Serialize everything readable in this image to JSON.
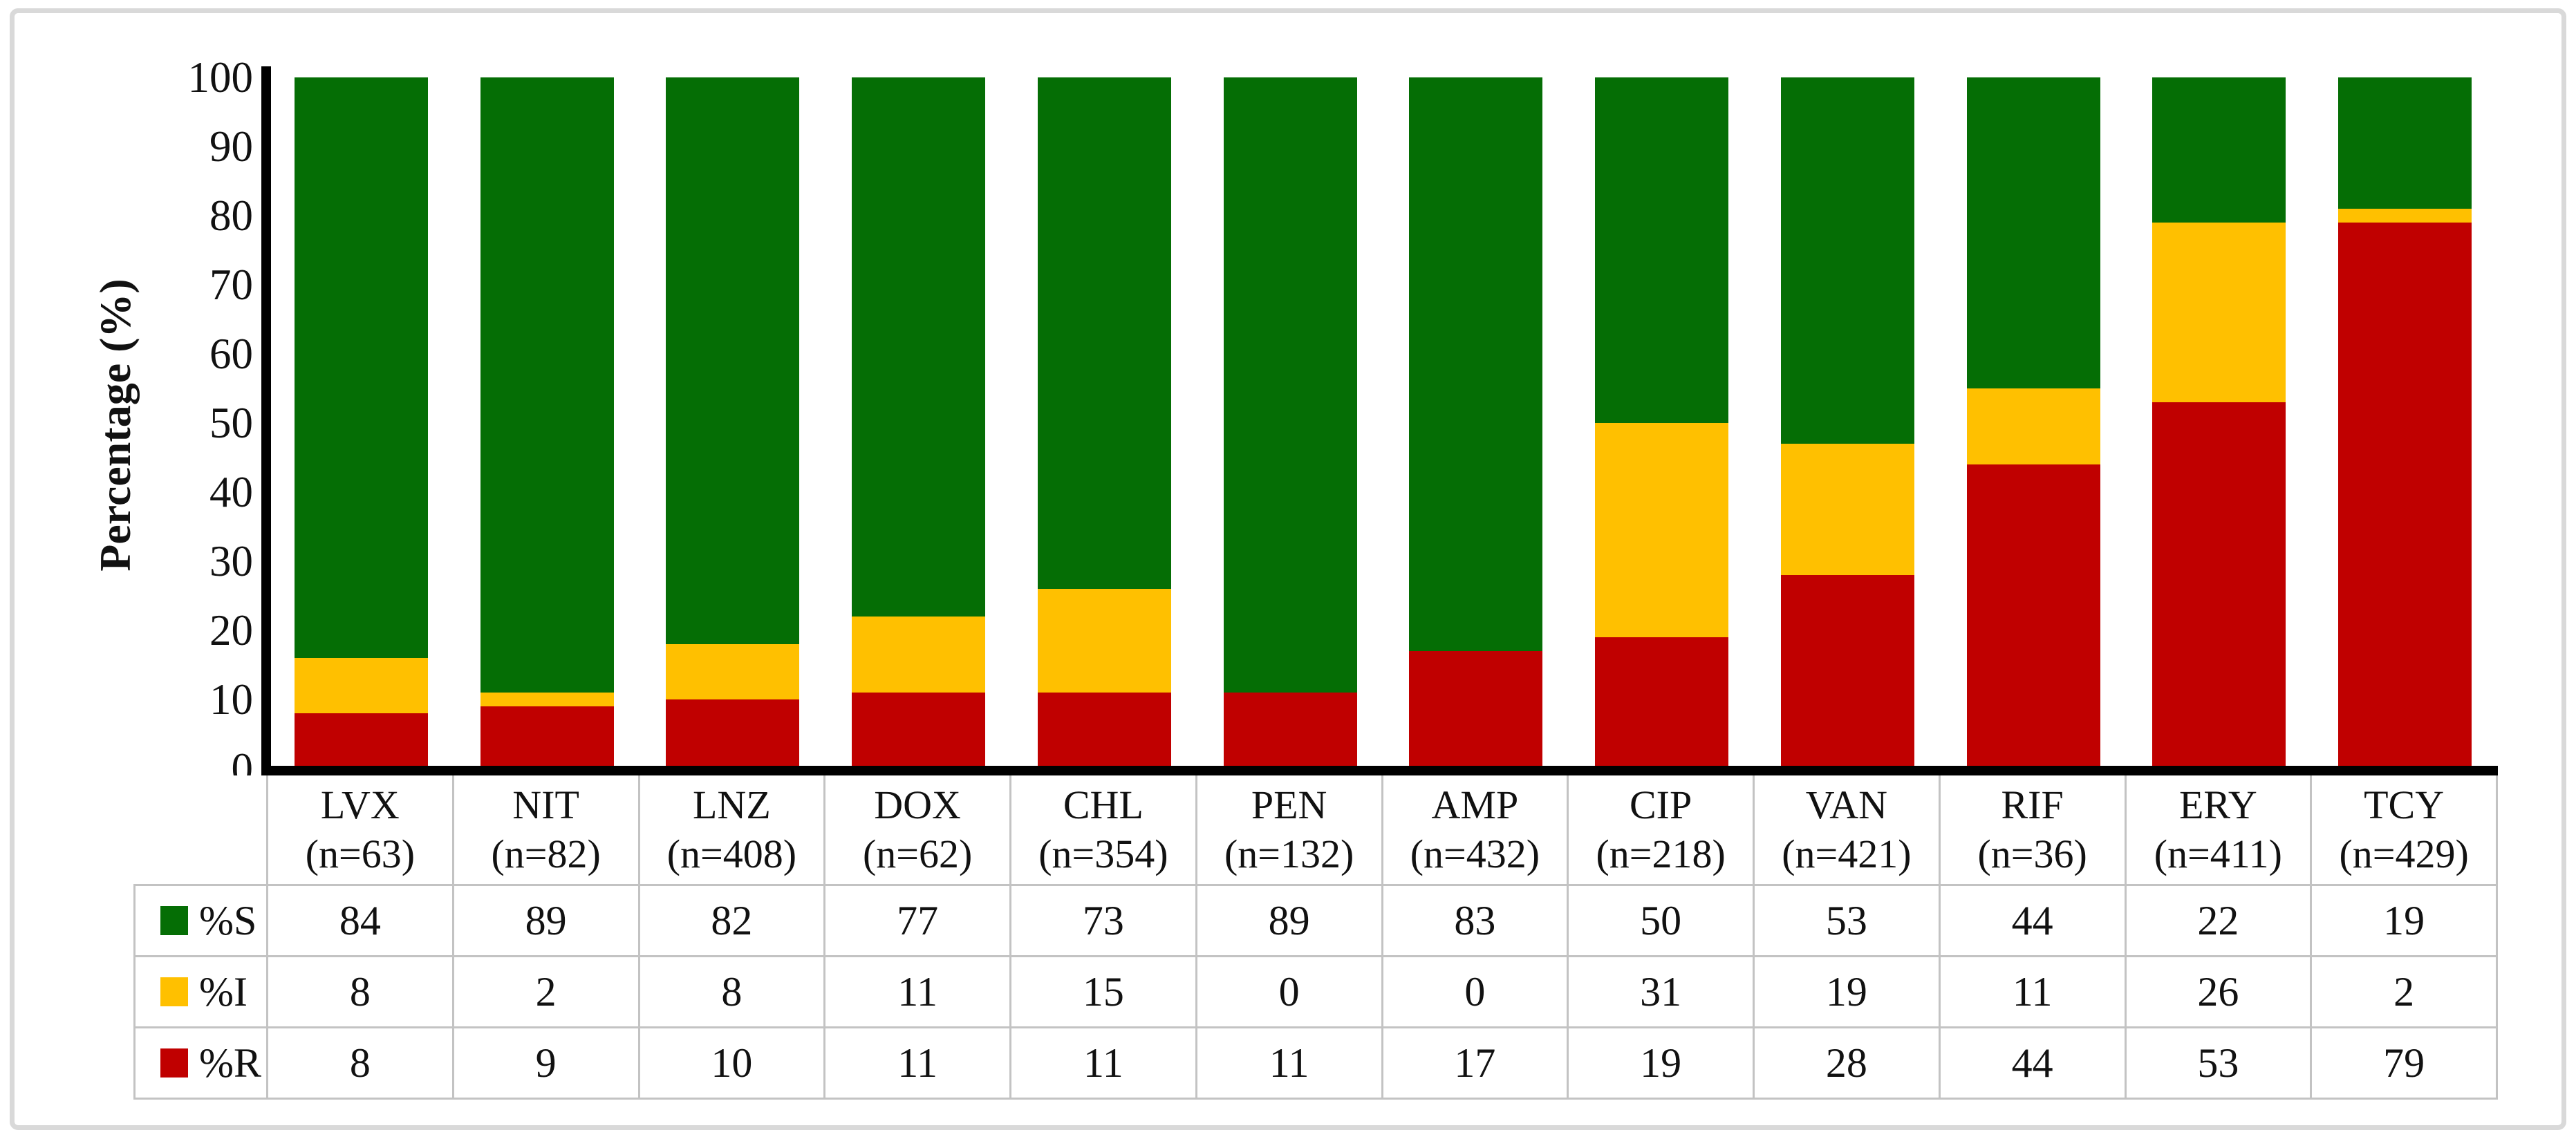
{
  "figure": {
    "background": "#ffffff",
    "border_color": "#d9d9d9"
  },
  "chart_data": {
    "type": "bar",
    "stacked": true,
    "orientation": "vertical",
    "title": "",
    "xlabel": "",
    "ylabel": "Percentage (%)",
    "ylim": [
      0,
      100
    ],
    "yticks": [
      0,
      10,
      20,
      30,
      40,
      50,
      60,
      70,
      80,
      90,
      100
    ],
    "grid": false,
    "axis_color": "#000000",
    "table_border_color": "#c3c3c3",
    "legend_position": "data-table-left-column",
    "categories": [
      {
        "code": "LVX",
        "n_label": "(n=63)"
      },
      {
        "code": "NIT",
        "n_label": "(n=82)"
      },
      {
        "code": "LNZ",
        "n_label": "(n=408)"
      },
      {
        "code": "DOX",
        "n_label": "(n=62)"
      },
      {
        "code": "CHL",
        "n_label": "(n=354)"
      },
      {
        "code": "PEN",
        "n_label": "(n=132)"
      },
      {
        "code": "AMP",
        "n_label": "(n=432)"
      },
      {
        "code": "CIP",
        "n_label": "(n=218)"
      },
      {
        "code": "VAN",
        "n_label": "(n=421)"
      },
      {
        "code": "RIF",
        "n_label": "(n=36)"
      },
      {
        "code": "ERY",
        "n_label": "(n=411)"
      },
      {
        "code": "TCY",
        "n_label": "(n=429)"
      }
    ],
    "series": [
      {
        "name": "%S",
        "color": "#056e05",
        "values": [
          84,
          89,
          82,
          77,
          73,
          89,
          83,
          50,
          53,
          44,
          22,
          19
        ]
      },
      {
        "name": "%I",
        "color": "#ffc000",
        "values": [
          8,
          2,
          8,
          11,
          15,
          0,
          0,
          31,
          19,
          11,
          26,
          2
        ]
      },
      {
        "name": "%R",
        "color": "#c00000",
        "values": [
          8,
          9,
          10,
          11,
          11,
          11,
          17,
          19,
          28,
          44,
          53,
          79
        ]
      }
    ]
  }
}
